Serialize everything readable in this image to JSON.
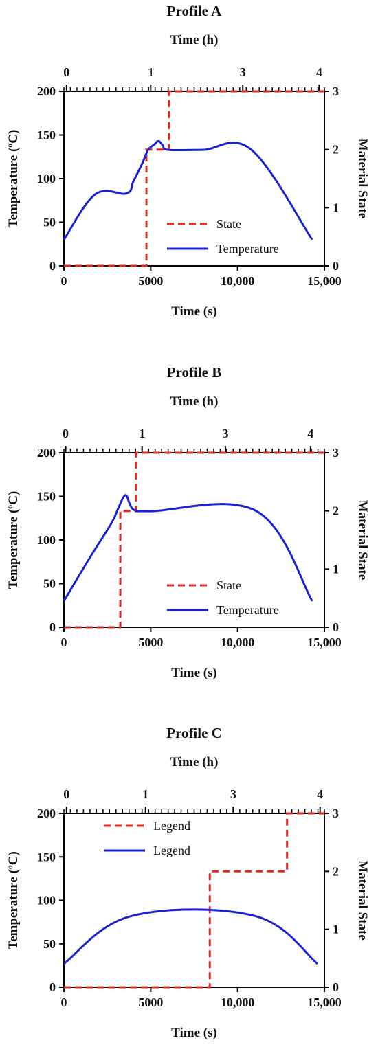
{
  "chart_data": [
    {
      "type": "line",
      "title": "Profile A",
      "xlabel": "Time (s)",
      "xlabel_top": "Time (h)",
      "ylabel": "Temperature (oC)",
      "ylabel_right": "Material State",
      "xlim": [
        0,
        15000
      ],
      "ylim": [
        0,
        200
      ],
      "ylim_right": [
        0,
        3
      ],
      "x_ticks": [
        "0",
        "5000",
        "10,000",
        "15,000"
      ],
      "y_ticks": [
        "0",
        "50",
        "100",
        "150",
        "200"
      ],
      "y_right_ticks": [
        "0",
        "1",
        "2",
        "3"
      ],
      "x_top_ticks": [
        {
          "x": 150,
          "label": "0"
        },
        {
          "x": 5000,
          "label": "1"
        },
        {
          "x": 10300,
          "label": "3"
        },
        {
          "x": 14700,
          "label": "4"
        }
      ],
      "legend": "center-right",
      "series": [
        {
          "name": "State",
          "axis": "right",
          "color": "#e8251f",
          "dash": true,
          "x": [
            0,
            4750,
            4750,
            6050,
            6050,
            15000
          ],
          "y": [
            0,
            0,
            2,
            2,
            3,
            3
          ]
        },
        {
          "name": "Temperature",
          "axis": "left",
          "color": "#1a22d6",
          "dash": false,
          "x": [
            0,
            1800,
            3600,
            4000,
            4500,
            4850,
            5200,
            5450,
            5700,
            6000,
            8000,
            10800,
            14300
          ],
          "y": [
            30,
            82,
            83,
            97,
            117,
            133,
            139,
            143,
            138,
            133,
            133,
            133,
            30
          ]
        }
      ]
    },
    {
      "type": "line",
      "title": "Profile B",
      "xlabel": "Time (s)",
      "xlabel_top": "Time (h)",
      "ylabel": "Temperature (oC)",
      "ylabel_right": "Material State",
      "xlim": [
        0,
        15000
      ],
      "ylim": [
        0,
        200
      ],
      "ylim_right": [
        0,
        3
      ],
      "x_ticks": [
        "0",
        "5000",
        "10,000",
        "15,000"
      ],
      "y_ticks": [
        "0",
        "50",
        "100",
        "150",
        "200"
      ],
      "y_right_ticks": [
        "0",
        "1",
        "2",
        "3"
      ],
      "x_top_ticks": [
        {
          "x": 100,
          "label": "0"
        },
        {
          "x": 4500,
          "label": "1"
        },
        {
          "x": 9300,
          "label": "3"
        },
        {
          "x": 14200,
          "label": "4"
        }
      ],
      "legend": "center-right",
      "series": [
        {
          "name": "State",
          "axis": "right",
          "color": "#e8251f",
          "dash": true,
          "x": [
            0,
            3250,
            3250,
            4150,
            4150,
            15000
          ],
          "y": [
            0,
            0,
            2,
            2,
            3,
            3
          ]
        },
        {
          "name": "Temperature",
          "axis": "left",
          "color": "#1a22d6",
          "dash": false,
          "x": [
            0,
            1500,
            2700,
            3100,
            3400,
            3600,
            3800,
            4100,
            5000,
            11100,
            14300
          ],
          "y": [
            30,
            80,
            118,
            135,
            148,
            151,
            141,
            134,
            133,
            133,
            30
          ]
        }
      ]
    },
    {
      "type": "line",
      "title": "Profile C",
      "xlabel": "Time (s)",
      "xlabel_top": "Time (h)",
      "ylabel": "Temperature (oC)",
      "ylabel_right": "Material State",
      "xlim": [
        0,
        15000
      ],
      "ylim": [
        0,
        200
      ],
      "ylim_right": [
        0,
        3
      ],
      "x_ticks": [
        "0",
        "5000",
        "10,000",
        "15,000"
      ],
      "y_ticks": [
        "0",
        "50",
        "100",
        "150",
        "200"
      ],
      "y_right_ticks": [
        "0",
        "1",
        "2",
        "3"
      ],
      "x_top_ticks": [
        {
          "x": 150,
          "label": "0"
        },
        {
          "x": 4700,
          "label": "1"
        },
        {
          "x": 9750,
          "label": "3"
        },
        {
          "x": 14750,
          "label": "4"
        }
      ],
      "legend": "top-left",
      "series": [
        {
          "name": "Legend",
          "axis": "right",
          "color": "#e8251f",
          "dash": true,
          "x": [
            0,
            8400,
            8400,
            12850,
            12850,
            15000
          ],
          "y": [
            0,
            0,
            2,
            2,
            3,
            3
          ]
        },
        {
          "name": "Legend",
          "axis": "left",
          "color": "#1a22d6",
          "dash": false,
          "x": [
            0,
            3900,
            11000,
            14600
          ],
          "y": [
            27,
            82,
            82,
            27
          ]
        }
      ]
    }
  ]
}
